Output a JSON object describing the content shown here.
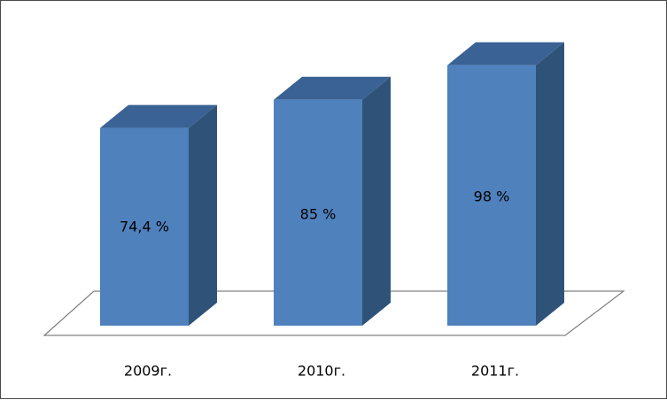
{
  "chart_data": {
    "type": "bar",
    "categories": [
      "2009г.",
      "2010г.",
      "2011г."
    ],
    "values": [
      74.4,
      85,
      98
    ],
    "data_labels": [
      "74,4 %",
      "85 %",
      "98 %"
    ],
    "title": "",
    "xlabel": "",
    "ylabel": "",
    "ylim": [
      0,
      100
    ],
    "grid": false,
    "legend": false,
    "three_d": true,
    "colors": {
      "front": "#4f81bd",
      "side": "#2f5278",
      "top": "#3b6294",
      "floor_stroke": "#808080",
      "frame": "#4a4a4a"
    }
  }
}
